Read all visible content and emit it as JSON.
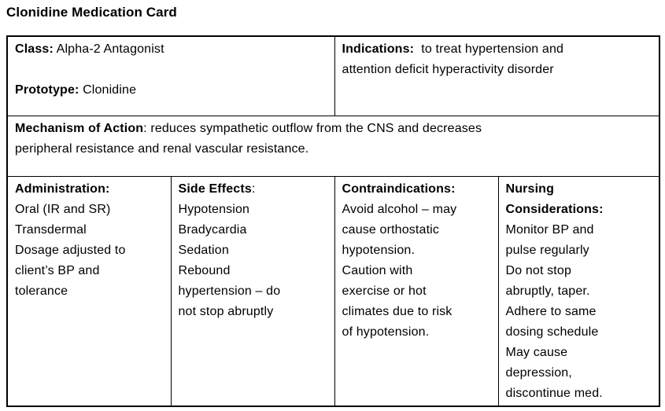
{
  "page": {
    "title": "Clonidine Medication Card"
  },
  "card": {
    "row1": {
      "class_label": "Class:",
      "class_value": " Alpha-2 Antagonist",
      "prototype_label": "Prototype:",
      "prototype_value": " Clonidine",
      "indications_label": "Indications:",
      "indications_line1_rest": "  to treat hypertension and",
      "indications_line2": "attention deficit hyperactivity disorder"
    },
    "row2": {
      "moa_label": "Mechanism of Action",
      "moa_line1_rest": ": reduces sympathetic outflow from the CNS and decreases",
      "moa_line2": "peripheral resistance and renal vascular resistance."
    },
    "row3": {
      "administration": {
        "label": "Administration:",
        "lines": [
          "Oral (IR and SR)",
          "Transdermal",
          "Dosage adjusted to",
          "client’s BP and",
          "tolerance"
        ]
      },
      "side_effects": {
        "label": "Side Effects",
        "label_suffix": ":",
        "lines": [
          "Hypotension",
          "Bradycardia",
          "Sedation",
          "Rebound",
          "hypertension – do",
          "not stop abruptly"
        ]
      },
      "contraindications": {
        "label": "Contraindications:",
        "lines": [
          "Avoid alcohol – may",
          "cause orthostatic",
          "hypotension.",
          "Caution with",
          "exercise or hot",
          "climates due to risk",
          "of hypotension."
        ]
      },
      "nursing": {
        "label_line1": "Nursing",
        "label_line2": "Considerations:",
        "lines": [
          "Monitor BP and",
          "pulse regularly",
          "Do not stop",
          "abruptly, taper.",
          "Adhere to same",
          "dosing schedule",
          "May cause",
          "depression,",
          "discontinue med."
        ]
      }
    }
  },
  "colors": {
    "text": "#000000",
    "border": "#000000",
    "background": "#ffffff"
  }
}
